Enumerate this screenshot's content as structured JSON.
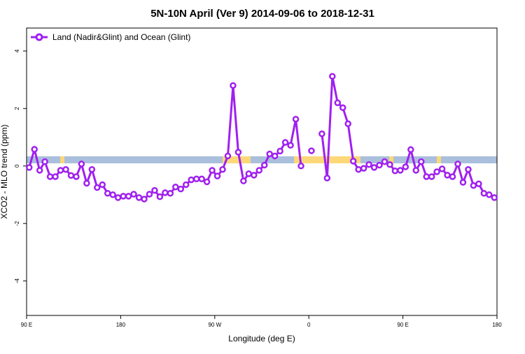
{
  "chart_data": {
    "type": "line",
    "title": "5N-10N April (Ver 9)   2014-09-06 to 2018-12-31",
    "x_label": "Longitude (deg E)",
    "y_label": "XCO2 - MLO trend (ppm)",
    "xlim": [
      90,
      540
    ],
    "xticks": [
      {
        "value": 90,
        "label": "90 E"
      },
      {
        "value": 180,
        "label": "180"
      },
      {
        "value": 270,
        "label": "90 W"
      },
      {
        "value": 360,
        "label": "0"
      },
      {
        "value": 450,
        "label": "90 E"
      },
      {
        "value": 540,
        "label": "180"
      }
    ],
    "ylim": [
      -5.2,
      4.8
    ],
    "yticks": [
      -4,
      -2,
      0,
      2,
      4
    ],
    "legend": "top-left",
    "x": [
      92.5,
      97.5,
      102.5,
      107.5,
      112.5,
      117.5,
      122.5,
      127.5,
      132.5,
      137.5,
      142.5,
      147.5,
      152.5,
      157.5,
      162.5,
      167.5,
      172.5,
      177.5,
      182.5,
      187.5,
      192.5,
      197.5,
      202.5,
      207.5,
      212.5,
      217.5,
      222.5,
      227.5,
      232.5,
      237.5,
      242.5,
      247.5,
      252.5,
      257.5,
      262.5,
      267.5,
      272.5,
      277.5,
      282.5,
      287.5,
      292.5,
      297.5,
      302.5,
      307.5,
      312.5,
      317.5,
      322.5,
      327.5,
      332.5,
      337.5,
      342.5,
      347.5,
      352.5,
      357.5,
      362.5,
      367.5,
      372.5,
      377.5,
      382.5,
      387.5,
      392.5,
      397.5,
      402.5,
      407.5,
      412.5,
      417.5,
      422.5,
      427.5,
      432.5,
      437.5,
      442.5,
      447.5,
      452.5,
      457.5,
      462.5,
      467.5,
      472.5,
      477.5,
      482.5,
      487.5,
      492.5,
      497.5,
      502.5,
      507.5,
      512.5,
      517.5,
      522.5,
      527.5,
      532.5,
      537.5
    ],
    "series": [
      {
        "name": "Land (Nadir&Glint) and Ocean (Glint)",
        "color": "#a020f0",
        "values": [
          -0.05,
          0.58,
          -0.15,
          0.15,
          -0.37,
          -0.37,
          -0.15,
          -0.12,
          -0.33,
          -0.37,
          0.07,
          -0.6,
          -0.12,
          -0.75,
          -0.65,
          -0.95,
          -1.0,
          -1.1,
          -1.05,
          -1.05,
          -0.98,
          -1.1,
          -1.15,
          -0.98,
          -0.85,
          -1.07,
          -0.93,
          -0.95,
          -0.73,
          -0.8,
          -0.65,
          -0.48,
          -0.45,
          -0.45,
          -0.55,
          -0.15,
          -0.35,
          -0.12,
          0.35,
          2.8,
          0.48,
          -0.52,
          -0.27,
          -0.32,
          -0.15,
          0.03,
          0.42,
          0.35,
          0.52,
          0.82,
          0.72,
          1.63,
          0.0,
          null,
          0.53,
          null,
          1.12,
          -0.42,
          3.12,
          2.2,
          2.03,
          1.47,
          0.17,
          -0.12,
          -0.08,
          0.05,
          -0.05,
          0.03,
          0.15,
          0.05,
          -0.17,
          -0.15,
          -0.03,
          0.57,
          -0.15,
          0.15,
          -0.37,
          -0.37,
          -0.2,
          -0.1,
          -0.32,
          -0.37,
          0.07,
          -0.57,
          -0.12,
          -0.68,
          -0.62,
          -0.95,
          -1.0,
          -1.1
        ]
      }
    ]
  }
}
